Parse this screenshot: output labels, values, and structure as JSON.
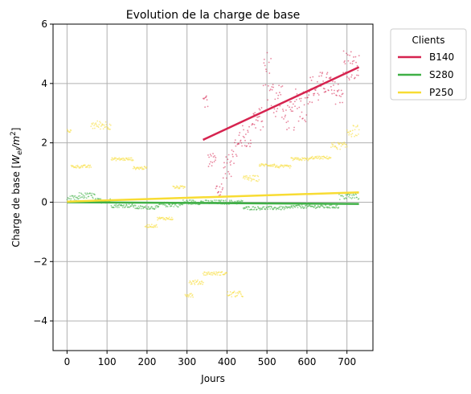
{
  "chart_data": {
    "type": "scatter",
    "title": "Evolution de la charge de base",
    "xlabel": "Jours",
    "ylabel_main": "Charge de base [",
    "ylabel_w": "W",
    "ylabel_sub": "el",
    "ylabel_per": "/m",
    "ylabel_sup": "2",
    "ylabel_end": "]",
    "xlim": [
      -35,
      765
    ],
    "ylim": [
      -5,
      6
    ],
    "xticks": [
      0,
      100,
      200,
      300,
      400,
      500,
      600,
      700
    ],
    "yticks": [
      -4,
      -2,
      0,
      2,
      4,
      6
    ],
    "grid": true,
    "legend": {
      "title": "Clients",
      "placement": "outside-top-right"
    },
    "series": [
      {
        "name": "B140",
        "color": "#d6234f",
        "trend": {
          "x": [
            340,
            730
          ],
          "y": [
            2.1,
            4.55
          ]
        },
        "segments": [
          {
            "x0": 340,
            "x1": 352,
            "y": 3.4,
            "spread": 0.3
          },
          {
            "x0": 352,
            "x1": 372,
            "y": 1.4,
            "spread": 0.25
          },
          {
            "x0": 372,
            "x1": 390,
            "y": 0.4,
            "spread": 0.35
          },
          {
            "x0": 390,
            "x1": 410,
            "y": 1.2,
            "spread": 0.4
          },
          {
            "x0": 410,
            "x1": 430,
            "y": 1.8,
            "spread": 0.5
          },
          {
            "x0": 430,
            "x1": 460,
            "y": 2.2,
            "spread": 0.4
          },
          {
            "x0": 460,
            "x1": 490,
            "y": 2.8,
            "spread": 0.4
          },
          {
            "x0": 490,
            "x1": 510,
            "y": 4.3,
            "spread": 0.9
          },
          {
            "x0": 510,
            "x1": 540,
            "y": 3.5,
            "spread": 0.7
          },
          {
            "x0": 540,
            "x1": 570,
            "y": 2.9,
            "spread": 0.5
          },
          {
            "x0": 570,
            "x1": 600,
            "y": 3.3,
            "spread": 0.6
          },
          {
            "x0": 600,
            "x1": 630,
            "y": 3.8,
            "spread": 0.5
          },
          {
            "x0": 630,
            "x1": 660,
            "y": 4.0,
            "spread": 0.4
          },
          {
            "x0": 660,
            "x1": 690,
            "y": 3.7,
            "spread": 0.4
          },
          {
            "x0": 690,
            "x1": 710,
            "y": 4.6,
            "spread": 0.6
          },
          {
            "x0": 710,
            "x1": 730,
            "y": 4.5,
            "spread": 0.5
          }
        ]
      },
      {
        "name": "S280",
        "color": "#3fb046",
        "trend": {
          "x": [
            0,
            730
          ],
          "y": [
            0.0,
            -0.06
          ]
        },
        "segments": [
          {
            "x0": 0,
            "x1": 30,
            "y": 0.12,
            "spread": 0.1
          },
          {
            "x0": 30,
            "x1": 70,
            "y": 0.22,
            "spread": 0.1
          },
          {
            "x0": 70,
            "x1": 110,
            "y": 0.05,
            "spread": 0.08
          },
          {
            "x0": 110,
            "x1": 170,
            "y": -0.12,
            "spread": 0.06
          },
          {
            "x0": 170,
            "x1": 230,
            "y": -0.18,
            "spread": 0.06
          },
          {
            "x0": 230,
            "x1": 290,
            "y": -0.08,
            "spread": 0.08
          },
          {
            "x0": 290,
            "x1": 340,
            "y": 0.0,
            "spread": 0.08
          },
          {
            "x0": 340,
            "x1": 440,
            "y": 0.0,
            "spread": 0.07
          },
          {
            "x0": 440,
            "x1": 560,
            "y": -0.2,
            "spread": 0.06
          },
          {
            "x0": 560,
            "x1": 680,
            "y": -0.15,
            "spread": 0.06
          },
          {
            "x0": 680,
            "x1": 730,
            "y": 0.2,
            "spread": 0.12
          }
        ]
      },
      {
        "name": "P250",
        "color": "#f8dc33",
        "trend": {
          "x": [
            0,
            730
          ],
          "y": [
            0.02,
            0.33
          ]
        },
        "segments": [
          {
            "x0": 0,
            "x1": 10,
            "y": 2.4,
            "spread": 0.05
          },
          {
            "x0": 10,
            "x1": 60,
            "y": 1.2,
            "spread": 0.05
          },
          {
            "x0": 60,
            "x1": 110,
            "y": 2.6,
            "spread": 0.15
          },
          {
            "x0": 110,
            "x1": 165,
            "y": 1.45,
            "spread": 0.05
          },
          {
            "x0": 165,
            "x1": 200,
            "y": 1.15,
            "spread": 0.05
          },
          {
            "x0": 195,
            "x1": 225,
            "y": -0.8,
            "spread": 0.05
          },
          {
            "x0": 225,
            "x1": 265,
            "y": -0.55,
            "spread": 0.05
          },
          {
            "x0": 265,
            "x1": 295,
            "y": 0.5,
            "spread": 0.05
          },
          {
            "x0": 295,
            "x1": 315,
            "y": -3.1,
            "spread": 0.1
          },
          {
            "x0": 305,
            "x1": 340,
            "y": -2.7,
            "spread": 0.08
          },
          {
            "x0": 340,
            "x1": 400,
            "y": -2.4,
            "spread": 0.06
          },
          {
            "x0": 400,
            "x1": 440,
            "y": -3.1,
            "spread": 0.1
          },
          {
            "x0": 440,
            "x1": 480,
            "y": 0.8,
            "spread": 0.1
          },
          {
            "x0": 480,
            "x1": 520,
            "y": 1.25,
            "spread": 0.05
          },
          {
            "x0": 520,
            "x1": 560,
            "y": 1.2,
            "spread": 0.05
          },
          {
            "x0": 560,
            "x1": 610,
            "y": 1.45,
            "spread": 0.05
          },
          {
            "x0": 610,
            "x1": 660,
            "y": 1.5,
            "spread": 0.05
          },
          {
            "x0": 660,
            "x1": 700,
            "y": 1.9,
            "spread": 0.12
          },
          {
            "x0": 700,
            "x1": 730,
            "y": 2.4,
            "spread": 0.2
          }
        ]
      }
    ]
  }
}
